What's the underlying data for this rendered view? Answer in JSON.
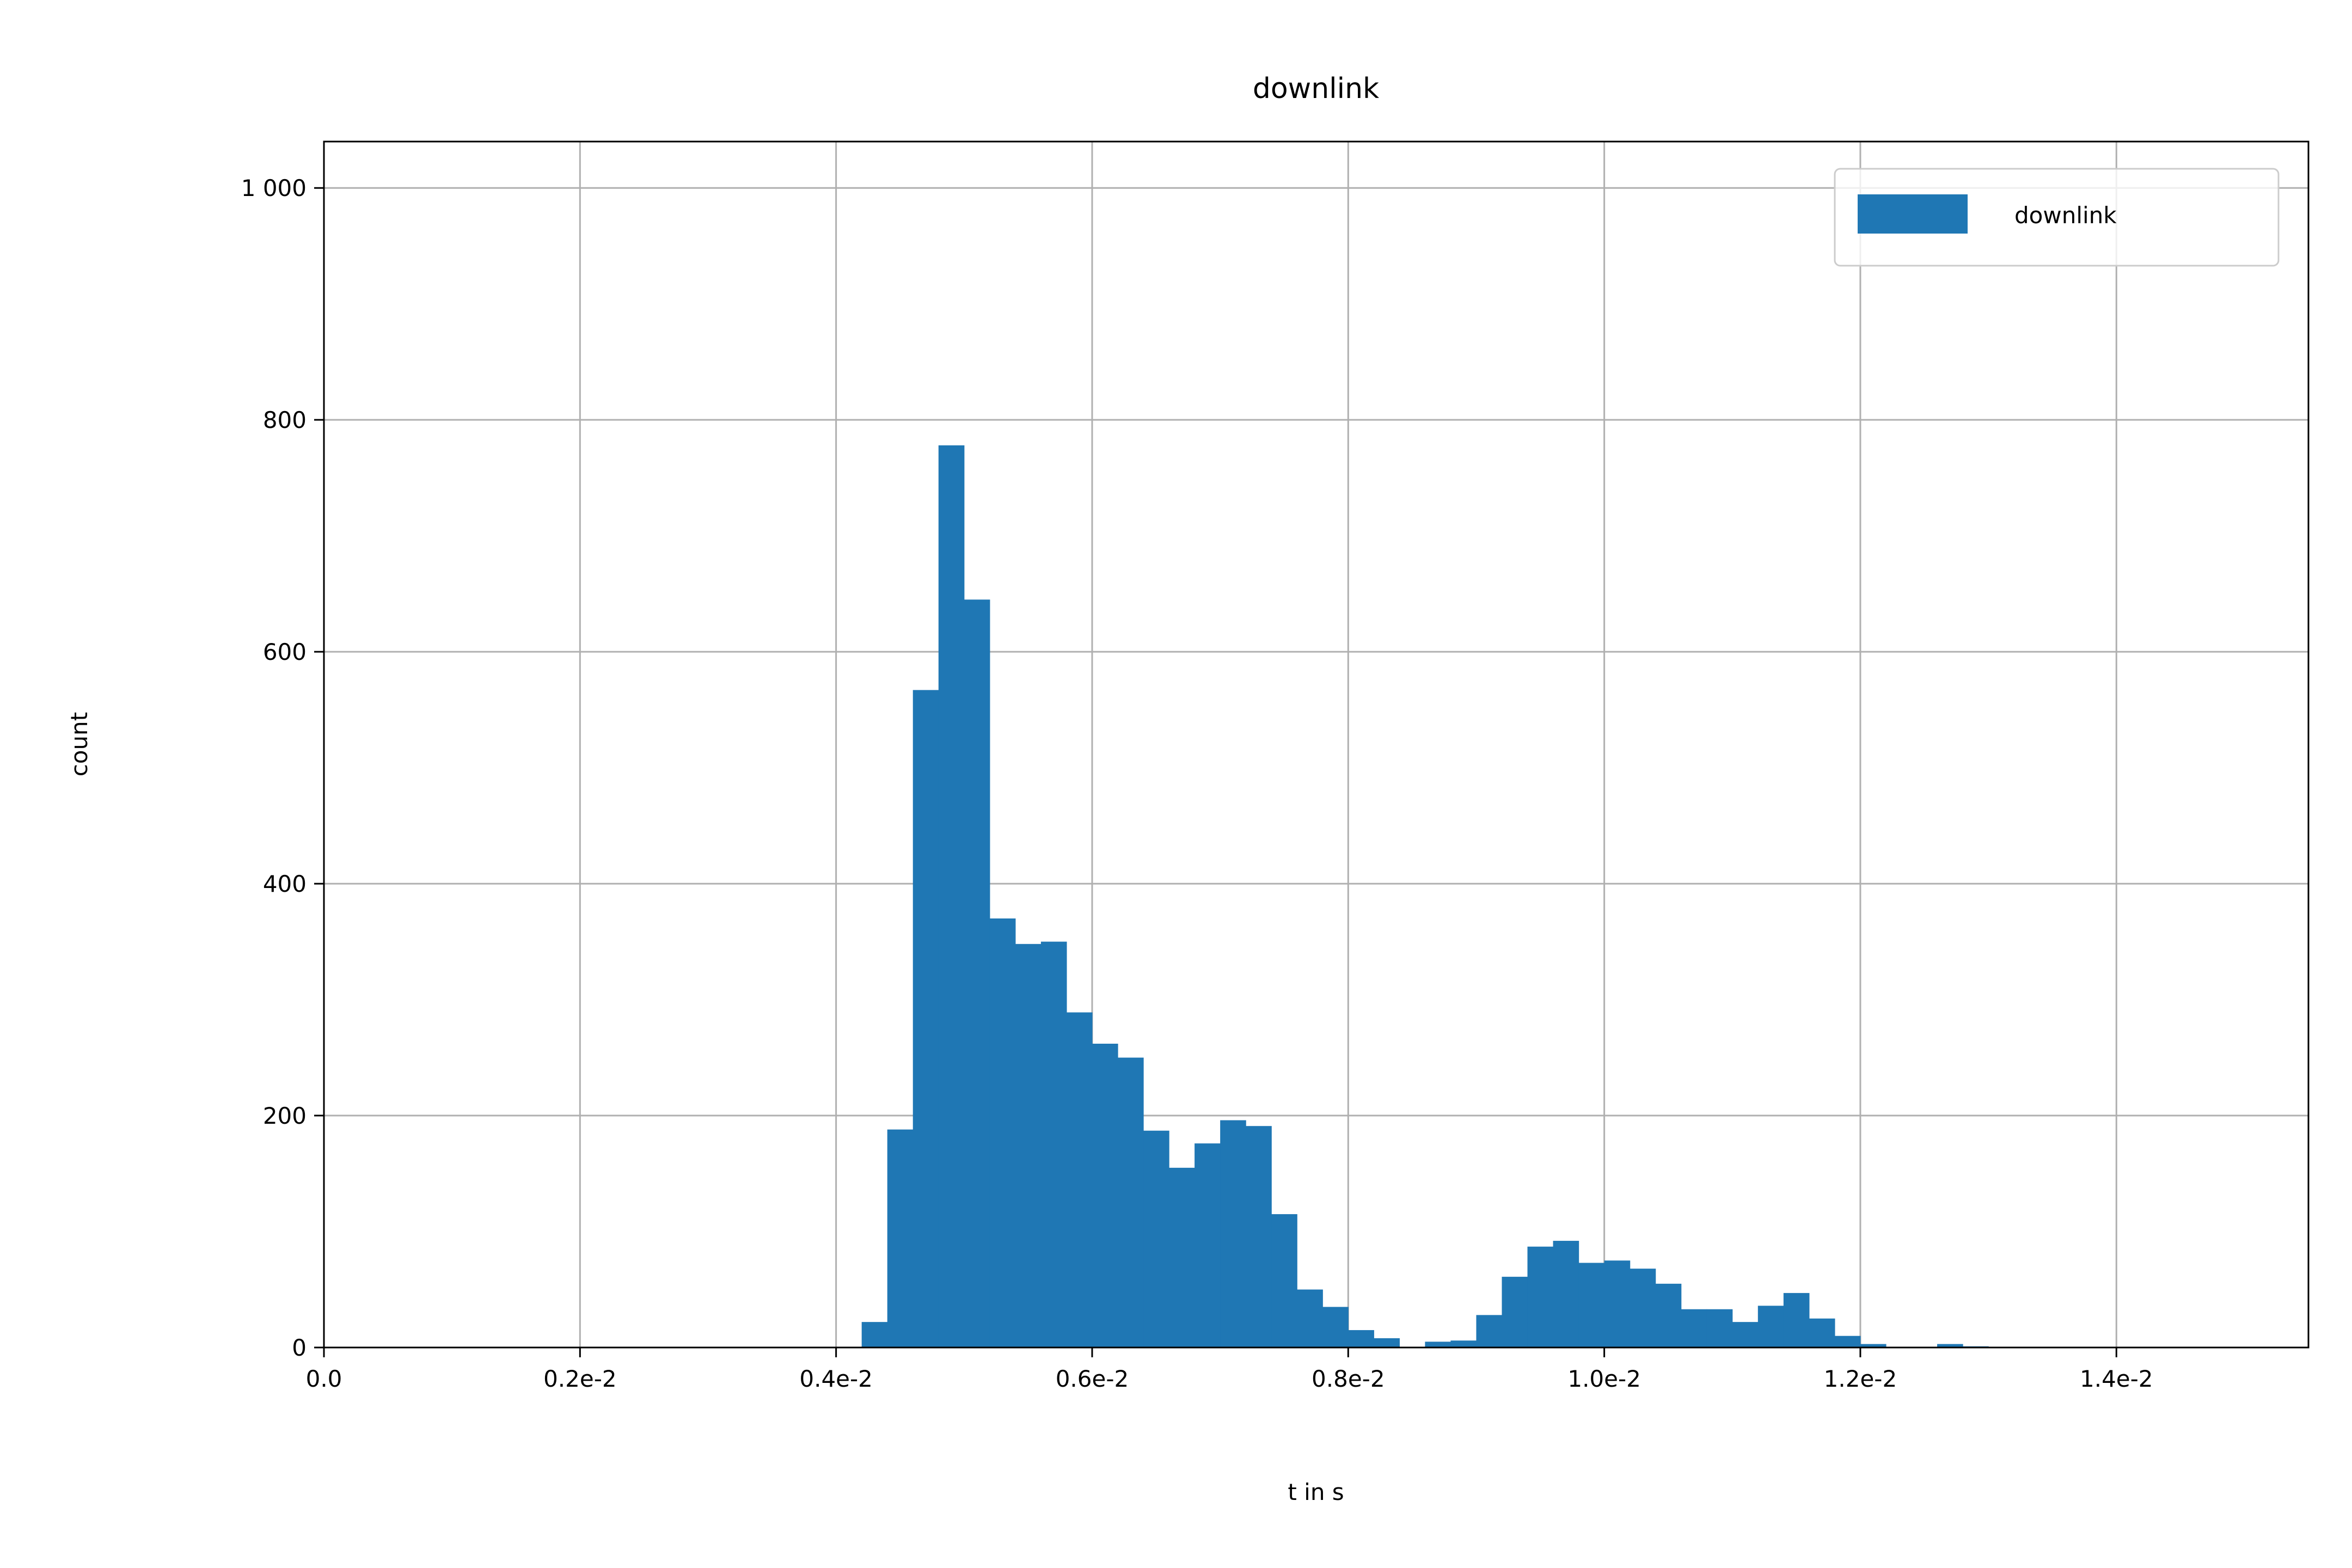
{
  "chart_data": {
    "type": "bar",
    "title": "downlink",
    "xlabel": "t in s",
    "ylabel": "count",
    "xlim": [
      0,
      0.0155
    ],
    "ylim": [
      0,
      1040
    ],
    "x_ticks": [
      {
        "value": 0.0,
        "label": "0.0"
      },
      {
        "value": 0.002,
        "label": "0.2e-2"
      },
      {
        "value": 0.004,
        "label": "0.4e-2"
      },
      {
        "value": 0.006,
        "label": "0.6e-2"
      },
      {
        "value": 0.008,
        "label": "0.8e-2"
      },
      {
        "value": 0.01,
        "label": "1.0e-2"
      },
      {
        "value": 0.012,
        "label": "1.2e-2"
      },
      {
        "value": 0.014,
        "label": "1.4e-2"
      }
    ],
    "y_ticks": [
      {
        "value": 0,
        "label": "0"
      },
      {
        "value": 200,
        "label": "200"
      },
      {
        "value": 400,
        "label": "400"
      },
      {
        "value": 600,
        "label": "600"
      },
      {
        "value": 800,
        "label": "800"
      },
      {
        "value": 1000,
        "label": "1 000"
      }
    ],
    "grid": true,
    "legend_position": "top-right",
    "color": "#1f77b4",
    "series": [
      {
        "name": "downlink",
        "bin_width": 0.0002,
        "bin_start": [
          0.0042,
          0.0044,
          0.0046,
          0.0048,
          0.005,
          0.0052,
          0.0054,
          0.0056,
          0.0058,
          0.006,
          0.0062,
          0.0064,
          0.0066,
          0.0068,
          0.007,
          0.0072,
          0.0074,
          0.0076,
          0.0078,
          0.008,
          0.0082,
          0.0084,
          0.0086,
          0.0088,
          0.009,
          0.0092,
          0.0094,
          0.0096,
          0.0098,
          0.01,
          0.0102,
          0.0104,
          0.0106,
          0.0108,
          0.011,
          0.0112,
          0.0114,
          0.0116,
          0.0118,
          0.012,
          0.0122,
          0.0124,
          0.0126,
          0.0128
        ],
        "counts": [
          22,
          188,
          567,
          778,
          645,
          370,
          348,
          350,
          289,
          262,
          250,
          187,
          155,
          176,
          196,
          191,
          115,
          50,
          35,
          15,
          8,
          0,
          5,
          6,
          28,
          61,
          87,
          92,
          73,
          75,
          68,
          55,
          33,
          33,
          22,
          36,
          47,
          25,
          10,
          3,
          0,
          0,
          3,
          1
        ]
      }
    ]
  }
}
